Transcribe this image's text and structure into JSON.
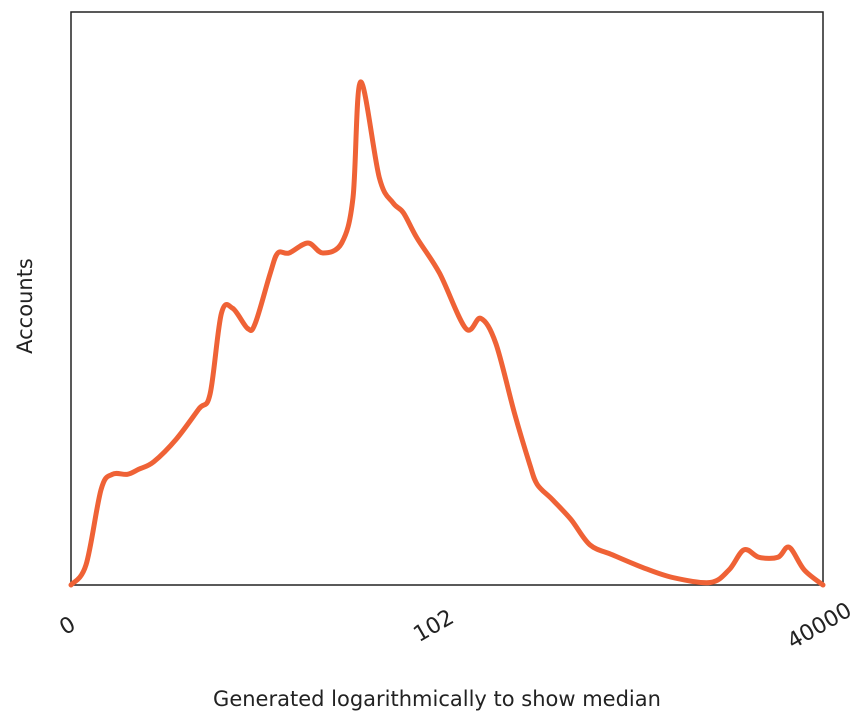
{
  "chart_data": {
    "type": "line",
    "xlabel": "Generated logarithmically to show median",
    "ylabel": "Accounts",
    "x_scale": "log-like",
    "x_ticks": [
      "0",
      "102",
      "40000"
    ],
    "x_tick_positions": [
      0,
      0.487,
      1
    ],
    "ylim": [
      0,
      100
    ],
    "show_y_ticks": false,
    "grid": false,
    "legend": "none",
    "colors": {
      "line": "#ef6236",
      "axis": "#222222"
    },
    "series": [
      {
        "x": [
          0,
          0.02,
          0.04,
          0.055,
          0.075,
          0.09,
          0.11,
          0.14,
          0.17,
          0.185,
          0.2,
          0.215,
          0.235,
          0.245,
          0.265,
          0.275,
          0.29,
          0.315,
          0.335,
          0.36,
          0.375,
          0.385,
          0.41,
          0.428,
          0.442,
          0.46,
          0.49,
          0.525,
          0.545,
          0.565,
          0.59,
          0.61,
          0.62,
          0.64,
          0.665,
          0.69,
          0.72,
          0.76,
          0.8,
          0.85,
          0.875,
          0.895,
          0.915,
          0.94,
          0.955,
          0.975,
          1
        ],
        "y": [
          0,
          4,
          19,
          22,
          22,
          23,
          24.5,
          29,
          35,
          38,
          54,
          55,
          51,
          52,
          62,
          66,
          66,
          68,
          66,
          68,
          77,
          100,
          81,
          76,
          74,
          69,
          62,
          51,
          53,
          48,
          34,
          24,
          20,
          17,
          13,
          8,
          6,
          3.5,
          1.5,
          0.5,
          3,
          7,
          5.5,
          5.5,
          7.5,
          3,
          0
        ]
      }
    ]
  }
}
